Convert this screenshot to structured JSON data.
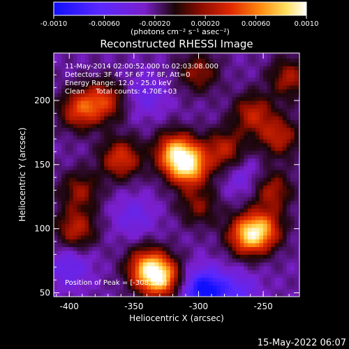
{
  "chart_data": {
    "type": "heatmap",
    "title": "Reconstructed RHESSI Image",
    "xlabel": "Heliocentric X (arcsec)",
    "ylabel": "Heliocentric Y (arcsec)",
    "xlim": [
      -412,
      -222
    ],
    "ylim": [
      47,
      237
    ],
    "x_ticks": [
      -400,
      -350,
      -300,
      -250
    ],
    "x_tick_labels": [
      "-400",
      "-350",
      "-300",
      "-250"
    ],
    "y_ticks": [
      50,
      100,
      150,
      200
    ],
    "y_tick_labels": [
      "50",
      "100",
      "150",
      "200"
    ],
    "colorbar": {
      "range": [
        -0.001,
        0.001
      ],
      "ticks": [
        -0.001,
        -0.0006,
        -0.0002,
        0.0002,
        0.0006,
        0.001
      ],
      "tick_labels": [
        "-0.0010",
        "-0.00060",
        "-0.00020",
        "0.00020",
        "0.00060",
        "0.0010"
      ],
      "units": "(photons cm⁻² s⁻¹ asec⁻²)"
    },
    "annotations": {
      "time_range": "11-May-2014 02:00:52.000 to 02:03:08.000",
      "detectors": "Detectors: 3F 4F 5F 6F 7F 8F, Att=0",
      "energy": "Energy Range: 12.0 - 25.0 keV",
      "clean": "Clean     Total counts: 4.70E+03",
      "peak": "Position of Peak = [-308,149]"
    },
    "sources": [
      {
        "x": -308,
        "y": 149,
        "peak": 0.00095
      },
      {
        "x": -318,
        "y": 160,
        "peak": 0.0008
      },
      {
        "x": -330,
        "y": 62,
        "peak": 0.0009
      },
      {
        "x": -340,
        "y": 70,
        "peak": 0.0007
      },
      {
        "x": -262,
        "y": 95,
        "peak": 0.0008
      },
      {
        "x": -250,
        "y": 100,
        "peak": 0.0006
      },
      {
        "x": -360,
        "y": 155,
        "peak": 0.0006
      },
      {
        "x": -373,
        "y": 200,
        "peak": 0.00055
      },
      {
        "x": -392,
        "y": 193,
        "peak": 0.0006
      },
      {
        "x": -258,
        "y": 190,
        "peak": 0.0005
      },
      {
        "x": -238,
        "y": 172,
        "peak": 0.0005
      },
      {
        "x": -243,
        "y": 130,
        "peak": 0.00045
      },
      {
        "x": -395,
        "y": 100,
        "peak": 0.0005
      },
      {
        "x": -280,
        "y": 162,
        "peak": 0.0005
      },
      {
        "x": -230,
        "y": 218,
        "peak": 0.00045
      },
      {
        "x": -300,
        "y": 222,
        "peak": 0.0004
      },
      {
        "x": -392,
        "y": 130,
        "peak": 0.0004
      },
      {
        "x": -300,
        "y": 118,
        "peak": 0.00035
      }
    ],
    "negative_regions": [
      {
        "x": -295,
        "y": 52,
        "peak": -0.00085
      },
      {
        "x": -400,
        "y": 70,
        "peak": -0.0003
      },
      {
        "x": -340,
        "y": 205,
        "peak": -0.00025
      },
      {
        "x": -350,
        "y": 110,
        "peak": -0.00025
      },
      {
        "x": -270,
        "y": 50,
        "peak": -0.00035
      },
      {
        "x": -265,
        "y": 140,
        "peak": -0.0002
      }
    ]
  },
  "footer_date": "15-May-2022 06:07"
}
